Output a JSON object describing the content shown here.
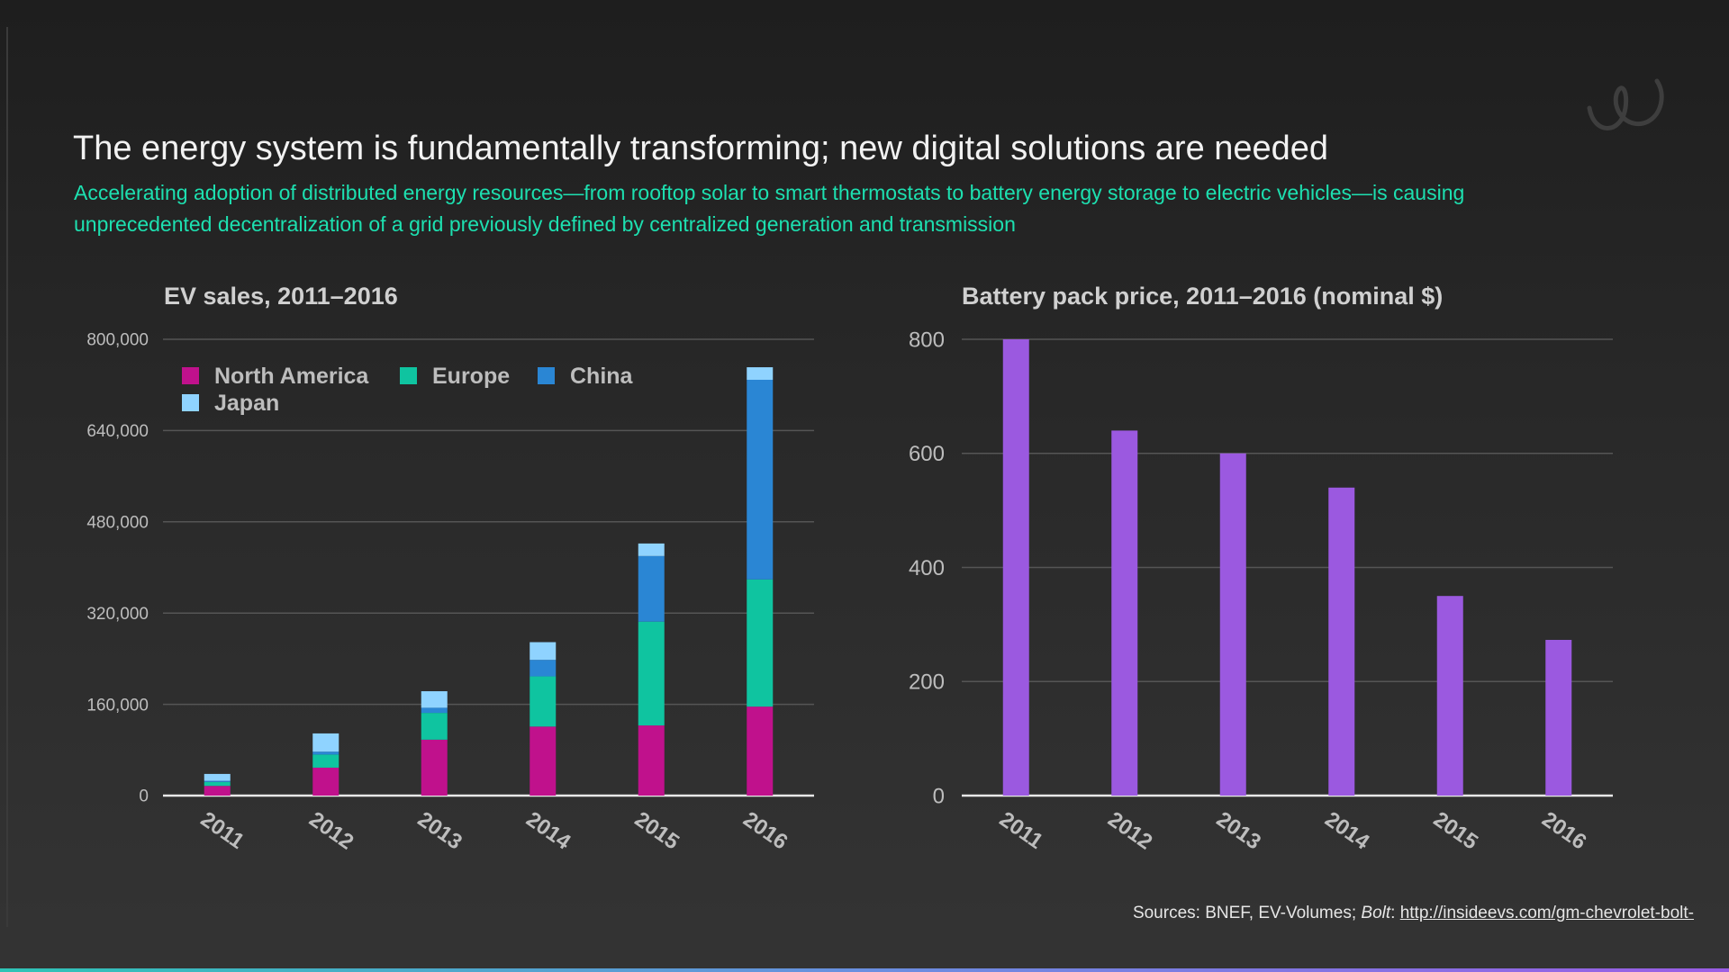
{
  "slide": {
    "title": "The energy system is fundamentally transforming; new digital solutions are needed",
    "subtitle": "Accelerating adoption of distributed energy resources—from rooftop solar to smart thermostats to battery energy storage to electric vehicles—is causing unprecedented decentralization of a grid previously defined by centralized generation and transmission",
    "sources_prefix": "Sources: BNEF, EV-Volumes; ",
    "sources_italic": "Bolt",
    "sources_sep": ": ",
    "sources_link": "http://insideevs.com/gm-chevrolet-bolt-",
    "logo_icon": "script-logo-icon"
  },
  "chart_data": [
    {
      "type": "bar",
      "stacked": true,
      "title": "EV sales, 2011–2016",
      "categories": [
        "2011",
        "2012",
        "2013",
        "2014",
        "2015",
        "2016"
      ],
      "ylim": [
        0,
        800000
      ],
      "yticks": [
        "0",
        "160,000",
        "320,000",
        "480,000",
        "640,000",
        "800,000"
      ],
      "ytick_values": [
        0,
        160000,
        320000,
        480000,
        640000,
        800000
      ],
      "grid": true,
      "legend": "top-left",
      "series": [
        {
          "name": "North America",
          "color": "#c0118c",
          "values": [
            17000,
            49000,
            98000,
            121000,
            123000,
            156000
          ]
        },
        {
          "name": "Europe",
          "color": "#0fc4a0",
          "values": [
            7000,
            23000,
            47000,
            88000,
            182000,
            223000
          ]
        },
        {
          "name": "China",
          "color": "#2a86d4",
          "values": [
            2000,
            5000,
            9000,
            29000,
            115000,
            350000
          ]
        },
        {
          "name": "Japan",
          "color": "#8fd3ff",
          "values": [
            12000,
            32000,
            29000,
            31000,
            22000,
            22000
          ]
        }
      ]
    },
    {
      "type": "bar",
      "title": "Battery pack price, 2011–2016 (nominal $)",
      "categories": [
        "2011",
        "2012",
        "2013",
        "2014",
        "2015",
        "2016"
      ],
      "ylim": [
        0,
        800
      ],
      "yticks": [
        "0",
        "200",
        "400",
        "600",
        "800"
      ],
      "ytick_values": [
        0,
        200,
        400,
        600,
        800
      ],
      "grid": true,
      "color": "#9b59e0",
      "values": [
        800,
        640,
        600,
        540,
        350,
        273
      ]
    }
  ]
}
